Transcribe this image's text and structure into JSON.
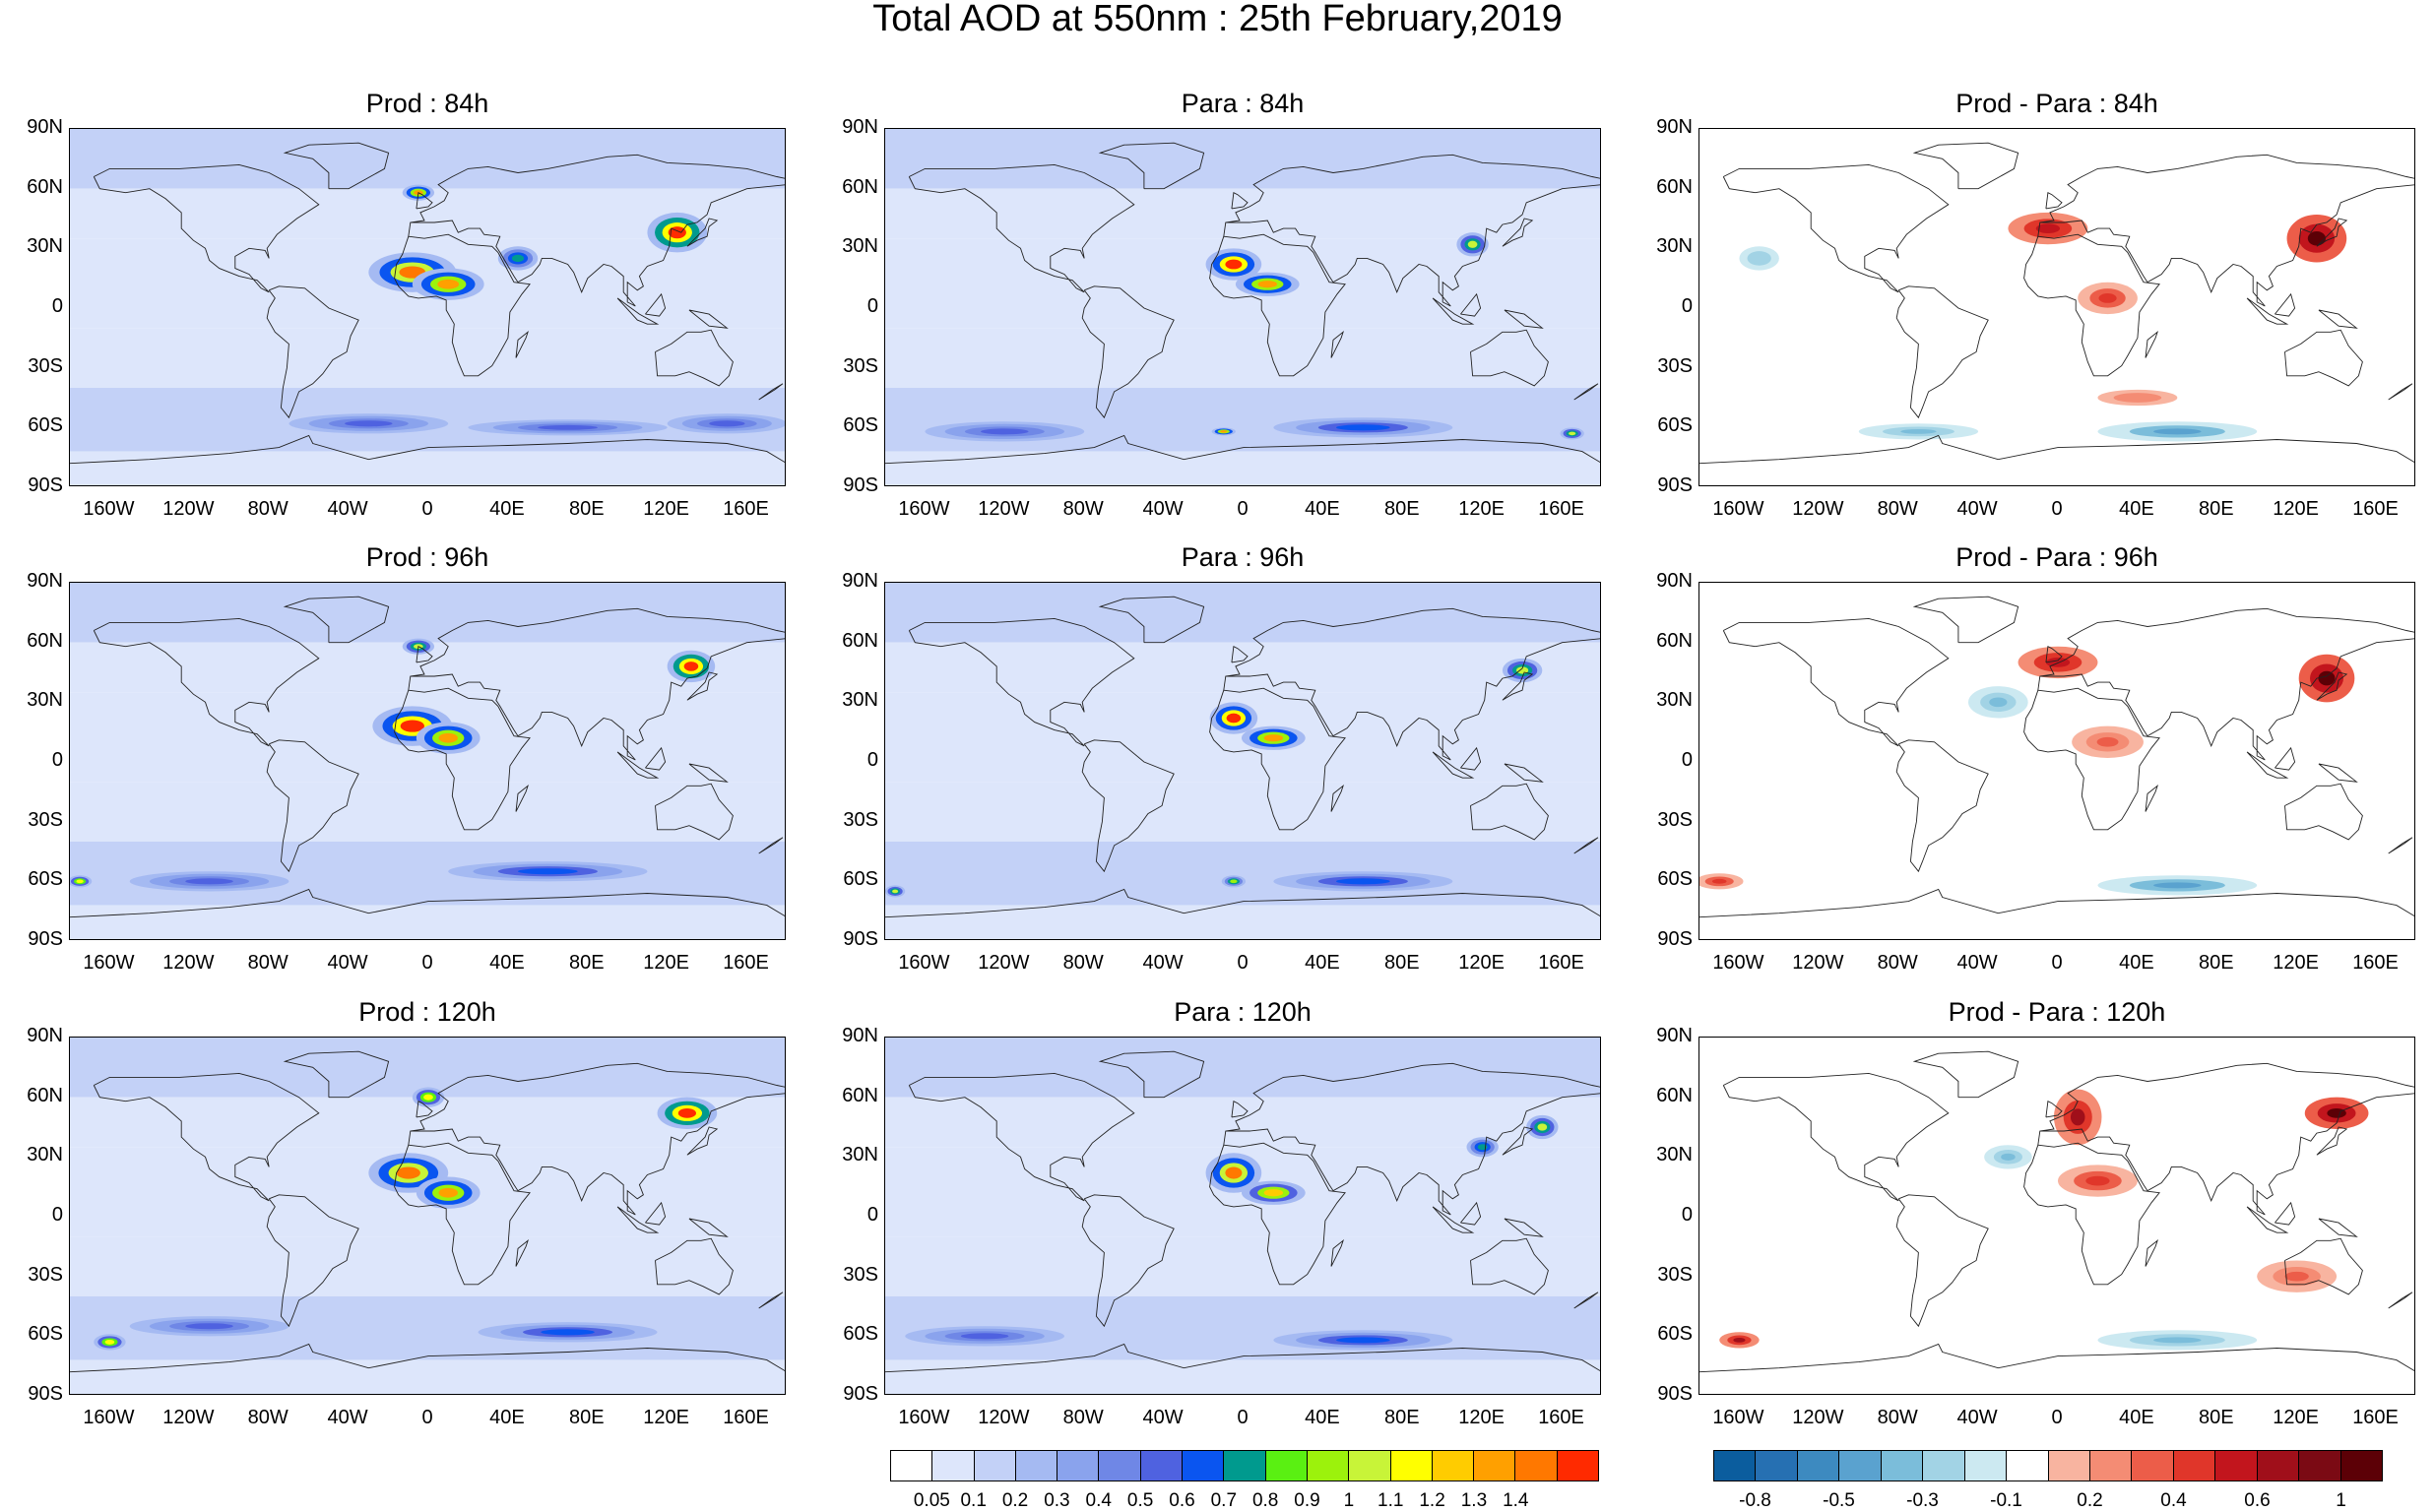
{
  "title": "Total AOD at 550nm : 25th February,2019",
  "panels": [
    {
      "title": "Prod : 84h",
      "kind": "aod"
    },
    {
      "title": "Para : 84h",
      "kind": "aod"
    },
    {
      "title": "Prod - Para : 84h",
      "kind": "diff"
    },
    {
      "title": "Prod : 96h",
      "kind": "aod"
    },
    {
      "title": "Para : 96h",
      "kind": "aod"
    },
    {
      "title": "Prod - Para : 96h",
      "kind": "diff"
    },
    {
      "title": "Prod : 120h",
      "kind": "aod"
    },
    {
      "title": "Para : 120h",
      "kind": "aod"
    },
    {
      "title": "Prod - Para : 120h",
      "kind": "diff"
    }
  ],
  "lat_labels": [
    "90N",
    "60N",
    "30N",
    "0",
    "30S",
    "60S",
    "90S"
  ],
  "lon_labels": [
    "160W",
    "120W",
    "80W",
    "40W",
    "0",
    "40E",
    "80E",
    "120E",
    "160E"
  ],
  "colorbars": {
    "aod": {
      "labels": [
        "0.05",
        "0.1",
        "0.2",
        "0.3",
        "0.4",
        "0.5",
        "0.6",
        "0.7",
        "0.8",
        "0.9",
        "1",
        "1.1",
        "1.2",
        "1.3",
        "1.4"
      ],
      "colors": [
        "#ffffff",
        "#dde6fb",
        "#c3d1f7",
        "#a5baf2",
        "#8aa3ed",
        "#6f87e6",
        "#4f62e0",
        "#0a55f0",
        "#009a8e",
        "#5af012",
        "#9cf20c",
        "#c8f438",
        "#ffff00",
        "#ffcc00",
        "#ffa000",
        "#ff7800",
        "#ff2a00"
      ]
    },
    "diff": {
      "labels": [
        "-0.8",
        "-0.5",
        "-0.3",
        "-0.1",
        "0.2",
        "0.4",
        "0.6",
        "1"
      ],
      "colors": [
        "#0b5d9e",
        "#2670b2",
        "#3d8ac0",
        "#5aa2cf",
        "#7bbdda",
        "#a2d3e5",
        "#cce9f1",
        "#ffffff",
        "#f8b4a0",
        "#f48c74",
        "#ec5d49",
        "#e0362a",
        "#c2151d",
        "#a00f1a",
        "#7b0a14",
        "#5c0006"
      ]
    }
  },
  "style_colors": {
    "coast": "#222222",
    "background": "#ffffff"
  }
}
